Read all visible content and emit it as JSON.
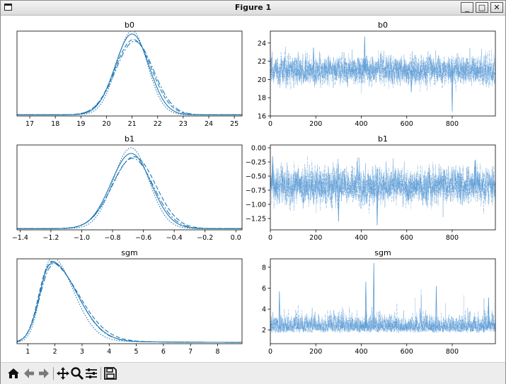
{
  "window": {
    "title": "Figure 1",
    "minimize_label": "_",
    "maximize_label": "□",
    "close_label": "✕"
  },
  "toolbar": {
    "icons": [
      "home-icon",
      "back-arrow-icon",
      "forward-arrow-icon",
      "pan-icon",
      "zoom-icon",
      "configure-subplots-icon",
      "save-icon"
    ]
  },
  "colors": {
    "line": "#1f77b4",
    "trace": "#5b9bd5"
  },
  "chart_data": [
    {
      "id": "b0-density",
      "type": "line",
      "title": "b0",
      "xlim": [
        16.5,
        25.3
      ],
      "ylim": [
        0,
        1.05
      ],
      "xticks": [
        17,
        18,
        19,
        20,
        21,
        22,
        23,
        24,
        25
      ],
      "yticks": [],
      "chains": [
        {
          "mu": 21.0,
          "sd": 0.66,
          "peak": 1.0,
          "dash": ""
        },
        {
          "mu": 21.05,
          "sd": 0.72,
          "peak": 0.93,
          "dash": "6,3"
        },
        {
          "mu": 21.1,
          "sd": 0.74,
          "peak": 0.91,
          "dash": "8,3,2,3"
        },
        {
          "mu": 21.0,
          "sd": 0.6,
          "peak": 1.04,
          "dash": "1.5,2"
        }
      ]
    },
    {
      "id": "b0-trace",
      "type": "line",
      "title": "b0",
      "xlim": [
        0,
        990
      ],
      "ylim": [
        16.0,
        25.3
      ],
      "xticks": [
        0,
        200,
        400,
        600,
        800
      ],
      "yticks": [
        16,
        18,
        20,
        22,
        24
      ],
      "mean": 21.0,
      "sd": 0.75,
      "n": 1000,
      "spikes": [
        {
          "x": 415,
          "y": 24.7
        },
        {
          "x": 800,
          "y": 16.5
        },
        {
          "x": 190,
          "y": 23.5
        },
        {
          "x": 620,
          "y": 18.6
        }
      ]
    },
    {
      "id": "b1-density",
      "type": "line",
      "title": "b1",
      "xlim": [
        -1.42,
        0.04
      ],
      "ylim": [
        0,
        1.05
      ],
      "xticks": [
        -1.4,
        -1.2,
        -1.0,
        -0.8,
        -0.6,
        -0.4,
        -0.2,
        0.0
      ],
      "yticks": [],
      "chains": [
        {
          "mu": -0.68,
          "sd": 0.13,
          "peak": 0.93,
          "dash": ""
        },
        {
          "mu": -0.66,
          "sd": 0.14,
          "peak": 0.89,
          "dash": "6,3"
        },
        {
          "mu": -0.67,
          "sd": 0.135,
          "peak": 0.87,
          "dash": "8,3,2,3"
        },
        {
          "mu": -0.68,
          "sd": 0.115,
          "peak": 1.0,
          "dash": "1.5,2"
        }
      ]
    },
    {
      "id": "b1-trace",
      "type": "line",
      "title": "b1",
      "xlim": [
        0,
        990
      ],
      "ylim": [
        -1.45,
        0.05
      ],
      "xticks": [
        0,
        200,
        400,
        600,
        800
      ],
      "yticks": [
        -1.25,
        -1.0,
        -0.75,
        -0.5,
        -0.25,
        0.0
      ],
      "mean": -0.67,
      "sd": 0.15,
      "n": 1000,
      "spikes": [
        {
          "x": 470,
          "y": -1.37
        },
        {
          "x": 10,
          "y": -0.15
        },
        {
          "x": 900,
          "y": -0.22
        },
        {
          "x": 300,
          "y": -1.3
        }
      ]
    },
    {
      "id": "sgm-density",
      "type": "line",
      "title": "sgm",
      "xlim": [
        0.6,
        8.9
      ],
      "ylim": [
        0,
        1.05
      ],
      "xticks": [
        1,
        2,
        3,
        4,
        5,
        6,
        7,
        8
      ],
      "yticks": [],
      "chains": [
        {
          "mode": 1.85,
          "left": 0.42,
          "right": 0.95,
          "peak": 0.97,
          "dash": ""
        },
        {
          "mode": 1.8,
          "left": 0.4,
          "right": 1.05,
          "peak": 0.96,
          "dash": "6,3"
        },
        {
          "mode": 1.9,
          "left": 0.45,
          "right": 0.92,
          "peak": 0.95,
          "dash": "8,3,2,3"
        },
        {
          "mode": 1.85,
          "left": 0.38,
          "right": 0.82,
          "peak": 1.03,
          "dash": "1.5,2"
        }
      ]
    },
    {
      "id": "sgm-trace",
      "type": "line",
      "title": "sgm",
      "xlim": [
        0,
        990
      ],
      "ylim": [
        0.7,
        8.8
      ],
      "xticks": [
        0,
        200,
        400,
        600,
        800
      ],
      "yticks": [
        2,
        4,
        6,
        8
      ],
      "mean": 2.15,
      "sd": 0.75,
      "n": 1000,
      "spikes": [
        {
          "x": 455,
          "y": 8.4
        },
        {
          "x": 420,
          "y": 6.6
        },
        {
          "x": 730,
          "y": 6.2
        },
        {
          "x": 40,
          "y": 5.7
        },
        {
          "x": 960,
          "y": 5.1
        }
      ]
    }
  ]
}
